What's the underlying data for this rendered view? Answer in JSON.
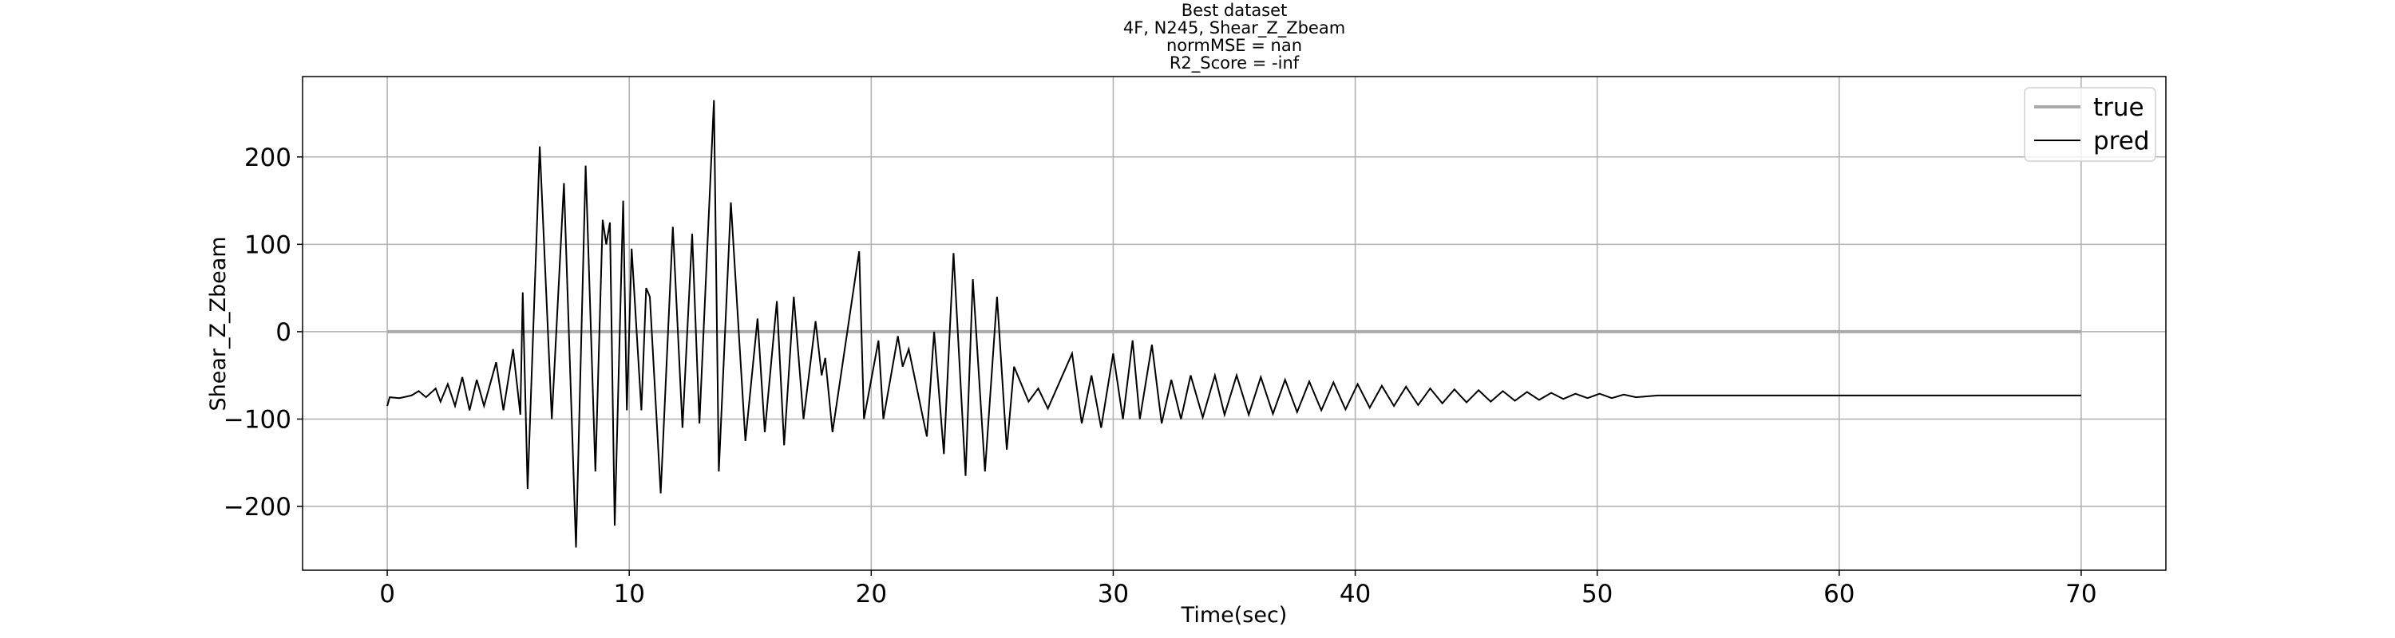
{
  "chart_data": {
    "type": "line",
    "title": [
      "Best dataset",
      "4F, N245, Shear_Z_Zbeam",
      "normMSE = nan",
      "R2_Score = -inf"
    ],
    "x_label": "Time(sec)",
    "y_label": "Shear_Z_Zbeam",
    "xlim": [
      -3.5,
      73.5
    ],
    "ylim": [
      -273,
      292
    ],
    "xticks": [
      0,
      10,
      20,
      30,
      40,
      50,
      60,
      70
    ],
    "yticks": [
      {
        "value": -200,
        "label": "−200"
      },
      {
        "value": -100,
        "label": "−100"
      },
      0,
      100,
      200
    ],
    "grid": true,
    "legend": "upper right",
    "series": [
      {
        "name": "true",
        "color": "#aaaaaa",
        "x": [
          0,
          70
        ],
        "values": [
          0,
          0
        ]
      },
      {
        "name": "pred",
        "color": "#000000",
        "x": [
          0,
          0.1,
          0.5,
          1.0,
          1.3,
          1.6,
          2.0,
          2.2,
          2.5,
          2.8,
          3.1,
          3.4,
          3.7,
          4.0,
          4.5,
          4.8,
          5.2,
          5.5,
          5.6,
          5.8,
          6.3,
          6.8,
          7.3,
          7.8,
          8.2,
          8.6,
          8.9,
          9.05,
          9.2,
          9.4,
          9.75,
          9.9,
          10.1,
          10.5,
          10.7,
          10.85,
          11.3,
          11.8,
          12.2,
          12.6,
          12.9,
          13.5,
          13.7,
          14.2,
          14.8,
          15.3,
          15.6,
          16.1,
          16.4,
          16.8,
          17.2,
          17.7,
          17.95,
          18.1,
          18.4,
          19.5,
          19.7,
          20.3,
          20.5,
          21.1,
          21.3,
          21.55,
          22.3,
          22.6,
          23.0,
          23.4,
          23.9,
          24.2,
          24.7,
          25.2,
          25.6,
          25.9,
          26.5,
          26.9,
          27.3,
          28.3,
          28.7,
          29.1,
          29.5,
          30.0,
          30.4,
          30.8,
          31.1,
          31.6,
          32.0,
          32.4,
          32.8,
          33.2,
          33.7,
          34.2,
          34.6,
          35.1,
          35.6,
          36.1,
          36.6,
          37.1,
          37.6,
          38.1,
          38.6,
          39.1,
          39.6,
          40.1,
          40.6,
          41.1,
          41.6,
          42.1,
          42.6,
          43.1,
          43.6,
          44.1,
          44.6,
          45.1,
          45.6,
          46.1,
          46.6,
          47.1,
          47.6,
          48.1,
          48.6,
          49.1,
          49.6,
          50.1,
          50.6,
          51.1,
          51.6,
          52.5,
          55,
          60,
          65,
          70
        ],
        "values": [
          -85,
          -75,
          -76,
          -73,
          -68,
          -75,
          -65,
          -80,
          -60,
          -85,
          -52,
          -90,
          -55,
          -85,
          -35,
          -90,
          -20,
          -95,
          45,
          -180,
          212,
          -100,
          170,
          -247,
          190,
          -160,
          128,
          100,
          125,
          -222,
          150,
          -90,
          95,
          -90,
          50,
          40,
          -185,
          120,
          -110,
          112,
          -105,
          265,
          -160,
          148,
          -125,
          15,
          -115,
          35,
          -130,
          40,
          -100,
          12,
          -50,
          -30,
          -115,
          92,
          -100,
          -10,
          -100,
          -5,
          -40,
          -20,
          -120,
          0,
          -140,
          90,
          -165,
          60,
          -160,
          40,
          -135,
          -40,
          -80,
          -65,
          -88,
          -25,
          -105,
          -50,
          -110,
          -25,
          -100,
          -10,
          -100,
          -15,
          -105,
          -55,
          -100,
          -50,
          -98,
          -50,
          -95,
          -50,
          -95,
          -52,
          -94,
          -55,
          -92,
          -57,
          -90,
          -58,
          -89,
          -60,
          -87,
          -62,
          -85,
          -63,
          -84,
          -65,
          -82,
          -66,
          -81,
          -67,
          -80,
          -68,
          -79,
          -69,
          -78,
          -70,
          -77,
          -71,
          -76,
          -71,
          -76,
          -72,
          -75,
          -73,
          -73,
          -73,
          -73,
          -73
        ]
      }
    ]
  }
}
